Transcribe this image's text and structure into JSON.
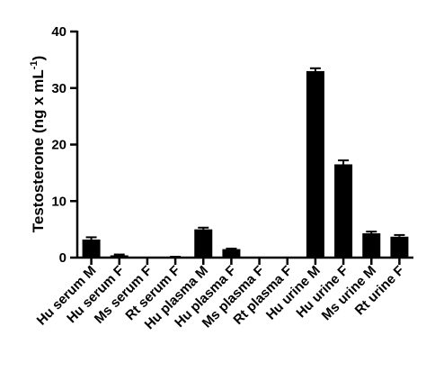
{
  "chart_data": {
    "type": "bar",
    "title": "",
    "xlabel": "",
    "ylabel_main": "Testosterone (ng x mL",
    "ylabel_sup": "-1",
    "ylabel_close": ")",
    "ylim": [
      0,
      40
    ],
    "yticks": [
      0,
      10,
      20,
      30,
      40
    ],
    "grid": false,
    "legend": "none",
    "bar_color": "#000000",
    "categories": [
      "Hu serum M",
      "Hu serum F",
      "Ms serum F",
      "Rt serum F",
      "Hu plasma M",
      "Hu plasma F",
      "Ms plasma F",
      "Rt plasma F",
      "Hu urine M",
      "Hu urine F",
      "Ms urine M",
      "Rt urine F"
    ],
    "values": [
      3.2,
      0.4,
      0,
      0.1,
      5.0,
      1.5,
      0,
      0,
      33.0,
      16.5,
      4.3,
      3.7
    ],
    "errors": [
      0.4,
      0.15,
      0,
      0.05,
      0.3,
      0.1,
      0,
      0,
      0.5,
      0.7,
      0.3,
      0.3
    ]
  }
}
